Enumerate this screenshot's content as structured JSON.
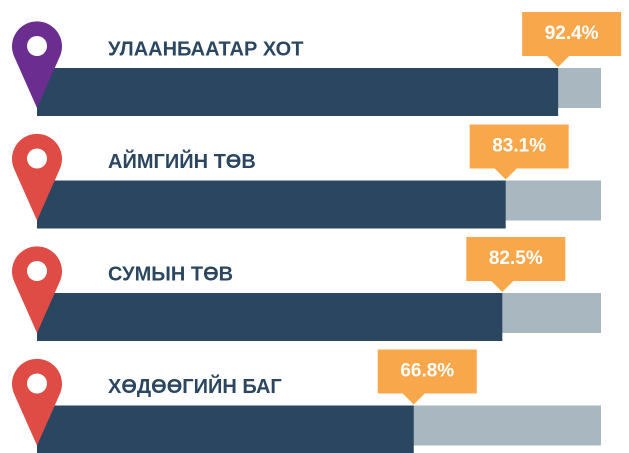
{
  "chart_data": {
    "type": "bar",
    "orientation": "horizontal",
    "categories": [
      "УЛААНБААТАР ХОТ",
      "АЙМГИЙН ТӨВ",
      "СУМЫН ТӨВ",
      "ХӨДӨӨГИЙН БАГ"
    ],
    "values": [
      92.4,
      83.1,
      82.5,
      66.8
    ],
    "value_labels": [
      "92.4%",
      "83.1%",
      "82.5%",
      "66.8%"
    ],
    "xlim": [
      0,
      100
    ],
    "color": "#2a4660",
    "track_color": "#a9b7c1",
    "label_color": "#f8a84b",
    "pin_colors": [
      "#6b2d90",
      "#df4b45",
      "#df4b45",
      "#df4b45"
    ]
  }
}
